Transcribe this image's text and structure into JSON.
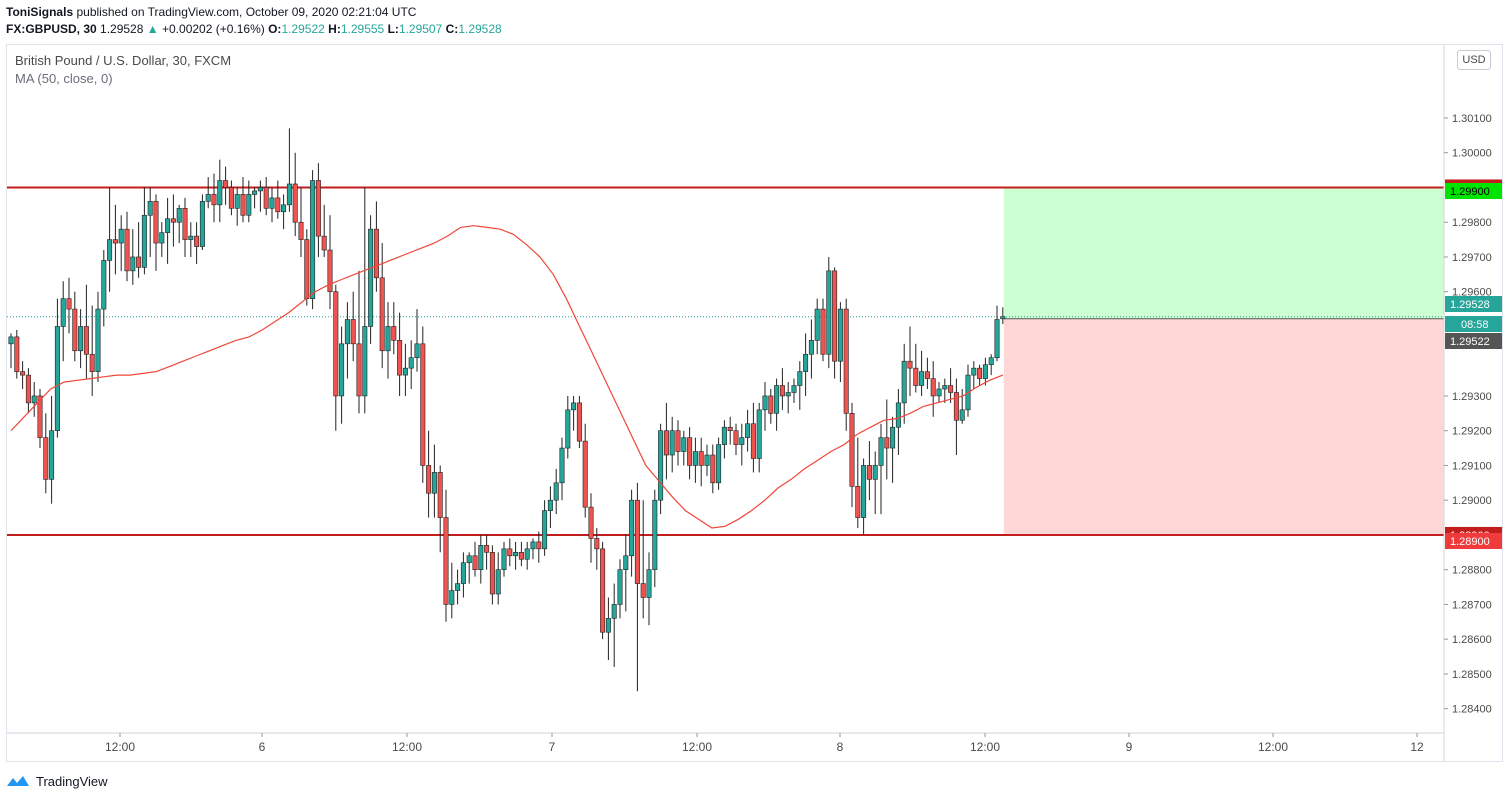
{
  "header": {
    "author": "ToniSignals",
    "published_text": "published on TradingView.com, October 09, 2020 02:21:04 UTC",
    "symbol": "FX:GBPUSD, 30",
    "last": "1.29528",
    "change_arrow": "▲",
    "change": "+0.00202 (+0.16%)",
    "o_label": "O:",
    "o_value": "1.29522",
    "h_label": "H:",
    "h_value": "1.29555",
    "l_label": "L:",
    "l_value": "1.29507",
    "c_label": "C:",
    "c_value": "1.29528"
  },
  "legend": {
    "instrument": "British Pound / U.S. Dollar, 30, FXCM",
    "indicator": "MA (50, close, 0)"
  },
  "currency_label": "USD",
  "footer": {
    "brand": "TradingView",
    "logo_icon": "tradingview-logo-icon"
  },
  "colors": {
    "up": "#26a69a",
    "down": "#ef5350",
    "ma": "#f0463a",
    "level": "#c21e1e",
    "target_zone": "#ccffd2",
    "stop_zone": "#ffd7d7",
    "last_price": "#26a69a"
  },
  "chart_data": {
    "type": "candlestick",
    "symbol": "GBPUSD",
    "interval": "30",
    "y_axis": {
      "ylim": [
        1.2833,
        1.3031
      ],
      "ticks": [
        "1.28400",
        "1.28500",
        "1.28600",
        "1.28700",
        "1.28800",
        "1.29000",
        "1.29100",
        "1.29200",
        "1.29300",
        "1.29600",
        "1.29700",
        "1.29800",
        "1.30000",
        "1.30100"
      ]
    },
    "x_axis": {
      "tick_labels": [
        "12:00",
        "6",
        "12:00",
        "7",
        "12:00",
        "8",
        "12:00",
        "9",
        "12:00",
        "12"
      ]
    },
    "grid": false,
    "horizontal_levels": [
      {
        "price": 1.299,
        "label": "1.29900"
      },
      {
        "price": 1.289,
        "label": "1.28900"
      }
    ],
    "price_labels": [
      {
        "value": "1.29900",
        "kind": "target"
      },
      {
        "value": "1.29528",
        "kind": "last"
      },
      {
        "value": "08:58",
        "kind": "countdown"
      },
      {
        "value": "1.29522",
        "kind": "open"
      },
      {
        "value": "1.28900",
        "kind": "stop"
      }
    ],
    "position": {
      "entry": 1.29522,
      "target": 1.299,
      "stop": 1.289
    },
    "candles": [
      [
        1.2945,
        1.2948,
        1.2938,
        1.2947
      ],
      [
        1.2947,
        1.2949,
        1.2935,
        1.2937
      ],
      [
        1.2937,
        1.294,
        1.2932,
        1.2936
      ],
      [
        1.2936,
        1.2938,
        1.2925,
        1.2928
      ],
      [
        1.2928,
        1.2934,
        1.2924,
        1.293
      ],
      [
        1.293,
        1.2932,
        1.2915,
        1.2918
      ],
      [
        1.2918,
        1.2925,
        1.2902,
        1.2906
      ],
      [
        1.2906,
        1.293,
        1.2899,
        1.292
      ],
      [
        1.292,
        1.2958,
        1.2918,
        1.295
      ],
      [
        1.295,
        1.2963,
        1.294,
        1.2958
      ],
      [
        1.2958,
        1.2964,
        1.2948,
        1.2955
      ],
      [
        1.2955,
        1.296,
        1.294,
        1.2943
      ],
      [
        1.2943,
        1.2955,
        1.2938,
        1.295
      ],
      [
        1.295,
        1.2962,
        1.2935,
        1.2942
      ],
      [
        1.2942,
        1.2956,
        1.293,
        1.2937
      ],
      [
        1.2937,
        1.296,
        1.2934,
        1.2955
      ],
      [
        1.2955,
        1.2972,
        1.295,
        1.2969
      ],
      [
        1.2969,
        1.299,
        1.296,
        1.2975
      ],
      [
        1.2975,
        1.2985,
        1.2965,
        1.2974
      ],
      [
        1.2974,
        1.2982,
        1.2966,
        1.2978
      ],
      [
        1.2978,
        1.2983,
        1.2963,
        1.2966
      ],
      [
        1.2966,
        1.2978,
        1.2962,
        1.297
      ],
      [
        1.297,
        1.298,
        1.2964,
        1.2967
      ],
      [
        1.2967,
        1.299,
        1.2965,
        1.2982
      ],
      [
        1.2982,
        1.299,
        1.297,
        1.2986
      ],
      [
        1.2986,
        1.2988,
        1.2966,
        1.2974
      ],
      [
        1.2974,
        1.298,
        1.297,
        1.2977
      ],
      [
        1.2977,
        1.2987,
        1.2968,
        1.2981
      ],
      [
        1.2981,
        1.2988,
        1.2973,
        1.298
      ],
      [
        1.298,
        1.2985,
        1.2974,
        1.2984
      ],
      [
        1.2984,
        1.2987,
        1.297,
        1.2975
      ],
      [
        1.2975,
        1.298,
        1.297,
        1.2976
      ],
      [
        1.2976,
        1.298,
        1.2968,
        1.2973
      ],
      [
        1.2973,
        1.2988,
        1.2972,
        1.2986
      ],
      [
        1.2986,
        1.2993,
        1.2984,
        1.2988
      ],
      [
        1.2988,
        1.2994,
        1.298,
        1.2985
      ],
      [
        1.2985,
        1.2998,
        1.298,
        1.2992
      ],
      [
        1.2992,
        1.2996,
        1.2985,
        1.299
      ],
      [
        1.299,
        1.2992,
        1.2982,
        1.2984
      ],
      [
        1.2984,
        1.299,
        1.2979,
        1.2988
      ],
      [
        1.2988,
        1.2993,
        1.298,
        1.2982
      ],
      [
        1.2982,
        1.2992,
        1.298,
        1.2988
      ],
      [
        1.2988,
        1.299,
        1.2984,
        1.2989
      ],
      [
        1.2989,
        1.2992,
        1.2983,
        1.299
      ],
      [
        1.299,
        1.2993,
        1.2982,
        1.2984
      ],
      [
        1.2984,
        1.299,
        1.298,
        1.2987
      ],
      [
        1.2987,
        1.2992,
        1.2981,
        1.2983
      ],
      [
        1.2983,
        1.2988,
        1.2978,
        1.2985
      ],
      [
        1.2985,
        1.3007,
        1.2983,
        1.2991
      ],
      [
        1.2991,
        1.3,
        1.2976,
        1.298
      ],
      [
        1.298,
        1.299,
        1.297,
        1.2975
      ],
      [
        1.2975,
        1.2978,
        1.2956,
        1.2958
      ],
      [
        1.2958,
        1.2995,
        1.2955,
        1.2992
      ],
      [
        1.2992,
        1.2997,
        1.297,
        1.2976
      ],
      [
        1.2976,
        1.2985,
        1.297,
        1.2972
      ],
      [
        1.2972,
        1.2982,
        1.2955,
        1.296
      ],
      [
        1.296,
        1.2962,
        1.292,
        1.293
      ],
      [
        1.293,
        1.295,
        1.2922,
        1.2945
      ],
      [
        1.2945,
        1.2957,
        1.2935,
        1.2952
      ],
      [
        1.2952,
        1.296,
        1.294,
        1.2945
      ],
      [
        1.2945,
        1.2966,
        1.2925,
        1.293
      ],
      [
        1.293,
        1.299,
        1.2925,
        1.295
      ],
      [
        1.295,
        1.2982,
        1.2945,
        1.2978
      ],
      [
        1.2978,
        1.2986,
        1.296,
        1.2964
      ],
      [
        1.2964,
        1.2974,
        1.2938,
        1.2943
      ],
      [
        1.2943,
        1.2957,
        1.2935,
        1.295
      ],
      [
        1.295,
        1.2957,
        1.2942,
        1.2946
      ],
      [
        1.2946,
        1.2954,
        1.293,
        1.2936
      ],
      [
        1.2936,
        1.2945,
        1.293,
        1.2938
      ],
      [
        1.2938,
        1.2946,
        1.2932,
        1.2941
      ],
      [
        1.2941,
        1.2955,
        1.2937,
        1.2945
      ],
      [
        1.2945,
        1.295,
        1.2905,
        1.291
      ],
      [
        1.291,
        1.292,
        1.2895,
        1.2902
      ],
      [
        1.2902,
        1.2916,
        1.2895,
        1.2908
      ],
      [
        1.2908,
        1.291,
        1.2885,
        1.2895
      ],
      [
        1.2895,
        1.2903,
        1.2865,
        1.287
      ],
      [
        1.287,
        1.2882,
        1.2866,
        1.2874
      ],
      [
        1.2874,
        1.288,
        1.287,
        1.2876
      ],
      [
        1.2876,
        1.2885,
        1.2872,
        1.2882
      ],
      [
        1.2882,
        1.2885,
        1.2876,
        1.2884
      ],
      [
        1.2884,
        1.2888,
        1.2878,
        1.288
      ],
      [
        1.288,
        1.289,
        1.2876,
        1.2887
      ],
      [
        1.2887,
        1.289,
        1.288,
        1.2885
      ],
      [
        1.2885,
        1.2887,
        1.287,
        1.2873
      ],
      [
        1.2873,
        1.2885,
        1.287,
        1.288
      ],
      [
        1.288,
        1.2888,
        1.2878,
        1.2886
      ],
      [
        1.2886,
        1.2889,
        1.2881,
        1.2884
      ],
      [
        1.2884,
        1.2888,
        1.288,
        1.2885
      ],
      [
        1.2885,
        1.2888,
        1.2881,
        1.2883
      ],
      [
        1.2883,
        1.2888,
        1.288,
        1.2886
      ],
      [
        1.2886,
        1.2889,
        1.2883,
        1.2888
      ],
      [
        1.2888,
        1.2891,
        1.2882,
        1.2886
      ],
      [
        1.2886,
        1.29,
        1.2884,
        1.2897
      ],
      [
        1.2897,
        1.2904,
        1.2892,
        1.29
      ],
      [
        1.29,
        1.2909,
        1.2896,
        1.2905
      ],
      [
        1.2905,
        1.2918,
        1.29,
        1.2915
      ],
      [
        1.2915,
        1.293,
        1.2912,
        1.2926
      ],
      [
        1.2926,
        1.293,
        1.292,
        1.2928
      ],
      [
        1.2928,
        1.293,
        1.2915,
        1.2917
      ],
      [
        1.2917,
        1.2922,
        1.2895,
        1.2898
      ],
      [
        1.2898,
        1.2902,
        1.2882,
        1.2889
      ],
      [
        1.2889,
        1.2892,
        1.288,
        1.2886
      ],
      [
        1.2886,
        1.2888,
        1.286,
        1.2862
      ],
      [
        1.2862,
        1.2872,
        1.2854,
        1.2866
      ],
      [
        1.2866,
        1.2876,
        1.2852,
        1.287
      ],
      [
        1.287,
        1.2883,
        1.2866,
        1.288
      ],
      [
        1.288,
        1.289,
        1.2868,
        1.2884
      ],
      [
        1.2884,
        1.2903,
        1.2878,
        1.29
      ],
      [
        1.29,
        1.2905,
        1.2845,
        1.2876
      ],
      [
        1.2876,
        1.29,
        1.2866,
        1.2872
      ],
      [
        1.2872,
        1.2885,
        1.2864,
        1.288
      ],
      [
        1.288,
        1.2903,
        1.2875,
        1.29
      ],
      [
        1.29,
        1.2922,
        1.2896,
        1.292
      ],
      [
        1.292,
        1.2928,
        1.2906,
        1.2913
      ],
      [
        1.2913,
        1.2924,
        1.2908,
        1.292
      ],
      [
        1.292,
        1.2923,
        1.291,
        1.2914
      ],
      [
        1.2914,
        1.292,
        1.291,
        1.2918
      ],
      [
        1.2918,
        1.2921,
        1.2906,
        1.291
      ],
      [
        1.291,
        1.2918,
        1.2905,
        1.2914
      ],
      [
        1.2914,
        1.2918,
        1.2904,
        1.291
      ],
      [
        1.291,
        1.2916,
        1.2907,
        1.2913
      ],
      [
        1.2913,
        1.2916,
        1.2902,
        1.2905
      ],
      [
        1.2905,
        1.2918,
        1.2903,
        1.2916
      ],
      [
        1.2916,
        1.2923,
        1.2912,
        1.2921
      ],
      [
        1.2921,
        1.2924,
        1.2916,
        1.292
      ],
      [
        1.292,
        1.2922,
        1.2913,
        1.2916
      ],
      [
        1.2916,
        1.2922,
        1.291,
        1.2918
      ],
      [
        1.2918,
        1.2926,
        1.2914,
        1.2922
      ],
      [
        1.2922,
        1.2928,
        1.2908,
        1.2912
      ],
      [
        1.2912,
        1.2928,
        1.2908,
        1.2926
      ],
      [
        1.2926,
        1.2934,
        1.292,
        1.293
      ],
      [
        1.293,
        1.2932,
        1.2922,
        1.2925
      ],
      [
        1.2925,
        1.2935,
        1.292,
        1.2933
      ],
      [
        1.2933,
        1.2938,
        1.2926,
        1.293
      ],
      [
        1.293,
        1.2934,
        1.2925,
        1.2931
      ],
      [
        1.2931,
        1.2935,
        1.2928,
        1.2933
      ],
      [
        1.2933,
        1.294,
        1.2926,
        1.2937
      ],
      [
        1.2937,
        1.2948,
        1.293,
        1.2942
      ],
      [
        1.2942,
        1.2952,
        1.2935,
        1.2946
      ],
      [
        1.2946,
        1.2958,
        1.2942,
        1.2955
      ],
      [
        1.2955,
        1.2958,
        1.294,
        1.2942
      ],
      [
        1.2942,
        1.297,
        1.2938,
        1.2966
      ],
      [
        1.2966,
        1.2967,
        1.2935,
        1.294
      ],
      [
        1.294,
        1.2957,
        1.2934,
        1.2955
      ],
      [
        1.2955,
        1.2958,
        1.292,
        1.2925
      ],
      [
        1.2925,
        1.2928,
        1.2898,
        1.2904
      ],
      [
        1.2904,
        1.2918,
        1.2892,
        1.2895
      ],
      [
        1.2895,
        1.2912,
        1.289,
        1.291
      ],
      [
        1.291,
        1.2917,
        1.29,
        1.2906
      ],
      [
        1.2906,
        1.2914,
        1.2896,
        1.291
      ],
      [
        1.291,
        1.2922,
        1.2896,
        1.2918
      ],
      [
        1.2918,
        1.2929,
        1.2906,
        1.2915
      ],
      [
        1.2915,
        1.2924,
        1.2905,
        1.2921
      ],
      [
        1.2921,
        1.2932,
        1.2913,
        1.2928
      ],
      [
        1.2928,
        1.2945,
        1.2922,
        1.294
      ],
      [
        1.294,
        1.295,
        1.293,
        1.2938
      ],
      [
        1.2938,
        1.2945,
        1.2931,
        1.2933
      ],
      [
        1.2933,
        1.2943,
        1.293,
        1.2937
      ],
      [
        1.2937,
        1.2941,
        1.2932,
        1.2935
      ],
      [
        1.2935,
        1.294,
        1.2924,
        1.293
      ],
      [
        1.293,
        1.2934,
        1.2928,
        1.2932
      ],
      [
        1.2932,
        1.2935,
        1.2928,
        1.2933
      ],
      [
        1.2933,
        1.2938,
        1.2928,
        1.2931
      ],
      [
        1.2931,
        1.2935,
        1.2913,
        1.2923
      ],
      [
        1.2923,
        1.2932,
        1.2922,
        1.2926
      ],
      [
        1.2926,
        1.2939,
        1.2924,
        1.2936
      ],
      [
        1.2936,
        1.294,
        1.2932,
        1.2938
      ],
      [
        1.2938,
        1.2939,
        1.2933,
        1.2935
      ],
      [
        1.2935,
        1.2941,
        1.2933,
        1.2939
      ],
      [
        1.2939,
        1.2942,
        1.2936,
        1.2941
      ],
      [
        1.2941,
        1.2956,
        1.294,
        1.2952
      ],
      [
        1.29522,
        1.29555,
        1.29507,
        1.29528
      ]
    ],
    "ma": [
      1.292,
      1.2924,
      1.2928,
      1.2932,
      1.2934,
      1.29345,
      1.2935,
      1.29355,
      1.2936,
      1.2936,
      1.29365,
      1.2937,
      1.29385,
      1.294,
      1.29415,
      1.2943,
      1.29445,
      1.2946,
      1.2947,
      1.2949,
      1.29515,
      1.2954,
      1.2957,
      1.296,
      1.2962,
      1.29635,
      1.2965,
      1.29665,
      1.2968,
      1.29695,
      1.2971,
      1.29725,
      1.2974,
      1.2976,
      1.29785,
      1.2979,
      1.29785,
      1.2978,
      1.29765,
      1.29735,
      1.297,
      1.2965,
      1.2958,
      1.295,
      1.2942,
      1.2934,
      1.2926,
      1.2918,
      1.291,
      1.29055,
      1.2901,
      1.2897,
      1.28945,
      1.2892,
      1.28925,
      1.28945,
      1.2897,
      1.29,
      1.29035,
      1.2906,
      1.2909,
      1.29115,
      1.2914,
      1.2916,
      1.2919,
      1.2921,
      1.2923,
      1.29235,
      1.2925,
      1.2927,
      1.2928,
      1.2929,
      1.293,
      1.29325,
      1.29345,
      1.2936
    ]
  }
}
